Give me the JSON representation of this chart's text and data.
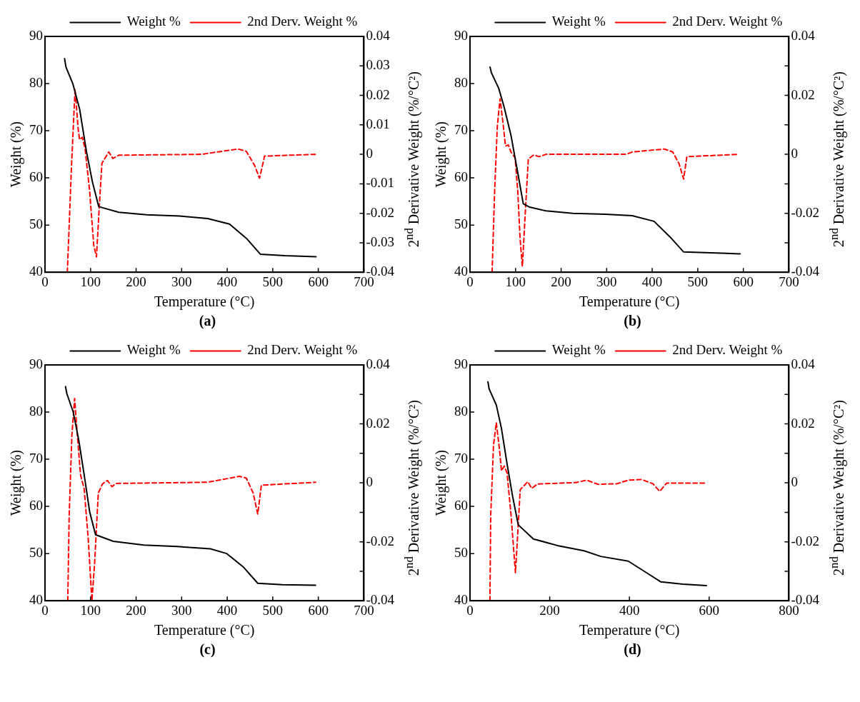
{
  "chart_data": [
    {
      "type": "line",
      "xlabel": "Temperature (°C)",
      "ylabel": "Weight (%)",
      "y2label": "2$^{nd}$ Derivative Weight (%/°C²)",
      "legend": "top",
      "annotations": [
        "(a)"
      ],
      "xlim": [
        0,
        700
      ],
      "xticks": [
        0,
        100,
        200,
        300,
        400,
        500,
        600,
        700
      ],
      "ylim": [
        40,
        90
      ],
      "yticks": [
        40,
        50,
        60,
        70,
        80,
        90
      ],
      "y2lim": [
        -0.04,
        0.04
      ],
      "y2ticks": [
        -0.04,
        -0.03,
        -0.02,
        -0.01,
        0,
        0.01,
        0.02,
        0.03,
        0.04
      ],
      "series": [
        {
          "name": "Weight %",
          "color": "#000000",
          "line_style": "solid",
          "x": [
            43,
            46,
            61,
            76,
            91,
            104,
            118,
            162,
            223,
            296,
            357,
            405,
            442,
            473,
            527,
            595
          ],
          "values": [
            85.3,
            83.5,
            80,
            74.6,
            65.6,
            59.2,
            53.9,
            52.7,
            52.2,
            51.9,
            51.4,
            50.2,
            47.2,
            43.8,
            43.5,
            43.3
          ]
        },
        {
          "name": "2nd Derv. Weight %",
          "color": "#ff0000",
          "line_style": "dashed",
          "axis": "y2",
          "x": [
            49,
            52,
            58,
            66,
            73,
            76,
            82,
            88,
            98,
            107,
            113,
            119,
            125,
            140,
            149,
            162,
            345,
            369,
            424,
            442,
            460,
            471,
            482,
            595
          ],
          "values": [
            -0.04,
            -0.0284,
            -0.0045,
            0.0221,
            0.0082,
            0.005,
            0.0058,
            0.0018,
            -0.0125,
            -0.0308,
            -0.0348,
            -0.0181,
            -0.003,
            0.0008,
            -0.0014,
            -0.0003,
            0,
            0.0006,
            0.0018,
            0.001,
            -0.0037,
            -0.0081,
            -0.0006,
            0
          ]
        }
      ]
    },
    {
      "type": "line",
      "xlabel": "Temperature (°C)",
      "ylabel": "Weight (%)",
      "y2label": "2$^{nd}$ Derivative Weight (%/°C²)",
      "legend": "top",
      "annotations": [
        "(b)"
      ],
      "xlim": [
        0,
        700
      ],
      "xticks": [
        0,
        100,
        200,
        300,
        400,
        500,
        600,
        700
      ],
      "ylim": [
        40,
        90
      ],
      "yticks": [
        40,
        50,
        60,
        70,
        80,
        90
      ],
      "y2lim": [
        -0.04,
        0.04
      ],
      "y2ticks": [
        -0.04,
        {
          "value": -0.03,
          "label": null
        },
        -0.02,
        {
          "value": -0.01,
          "label": null
        },
        0,
        {
          "value": 0.01,
          "label": null
        },
        0.02,
        {
          "value": 0.03,
          "label": null
        },
        0.04
      ],
      "series": [
        {
          "name": "Weight %",
          "color": "#000000",
          "line_style": "solid",
          "x": [
            44,
            47,
            63,
            75,
            90,
            105,
            117,
            131,
            167,
            226,
            297,
            356,
            404,
            439,
            469,
            593
          ],
          "values": [
            83.5,
            82.3,
            79,
            75,
            69,
            61,
            54.5,
            53.8,
            53,
            52.5,
            52.3,
            52,
            50.8,
            47.5,
            44.3,
            43.9
          ]
        },
        {
          "name": "2nd Derv. Weight %",
          "color": "#ff0000",
          "line_style": "dashed",
          "axis": "y2",
          "x": [
            48.5,
            54,
            60,
            66,
            72,
            78,
            84,
            90,
            99,
            105,
            110,
            115,
            121,
            128,
            140,
            152,
            167,
            344,
            356,
            427,
            445,
            459,
            469,
            476,
            590
          ],
          "values": [
            -0.04,
            -0.0128,
            0.0096,
            0.0188,
            0.0112,
            0.0028,
            0.0032,
            0.0008,
            -0.0012,
            -0.0128,
            -0.0288,
            -0.038,
            -0.0208,
            -0.0016,
            -0.0002,
            -0.0008,
            0,
            0,
            0.0008,
            0.0018,
            0.0008,
            -0.0032,
            -0.0084,
            -0.0008,
            0
          ]
        }
      ]
    },
    {
      "type": "line",
      "xlabel": "Temperature (°C)",
      "ylabel": "Weight (%)",
      "y2label": "2$^{nd}$ Derivative Weight (%/°C²)",
      "legend": "top",
      "annotations": [
        "(c)"
      ],
      "xlim": [
        0,
        700
      ],
      "xticks": [
        0,
        100,
        200,
        300,
        400,
        500,
        600,
        700
      ],
      "ylim": [
        40,
        90
      ],
      "yticks": [
        40,
        50,
        60,
        70,
        80,
        90
      ],
      "y2lim": [
        -0.04,
        0.04
      ],
      "y2ticks": [
        -0.04,
        {
          "value": -0.03,
          "label": null
        },
        -0.02,
        {
          "value": -0.01,
          "label": null
        },
        0,
        {
          "value": 0.01,
          "label": null
        },
        0.02,
        {
          "value": 0.03,
          "label": null
        },
        0.04
      ],
      "series": [
        {
          "name": "Weight %",
          "color": "#000000",
          "line_style": "solid",
          "x": [
            45,
            48,
            62,
            74,
            86,
            98,
            111,
            150,
            217,
            290,
            363,
            399,
            436,
            467,
            521,
            594
          ],
          "values": [
            85.4,
            83.9,
            80,
            74.1,
            66.7,
            58.9,
            54,
            52.6,
            51.8,
            51.5,
            51,
            50,
            47.1,
            43.7,
            43.4,
            43.3
          ]
        },
        {
          "name": "2nd Derv. Weight %",
          "color": "#ff0000",
          "line_style": "dashed",
          "axis": "y2",
          "x": [
            50,
            53,
            59,
            65,
            71,
            78,
            86,
            95,
            103,
            109,
            117,
            126,
            137,
            147,
            156,
            357,
            427,
            442,
            457,
            467,
            475,
            594
          ],
          "values": [
            -0.04,
            -0.0114,
            0.0161,
            0.0286,
            0.0161,
            0.0027,
            -0.002,
            -0.0192,
            -0.04,
            -0.0271,
            -0.0035,
            -0.0004,
            0.0008,
            -0.0013,
            -0.0002,
            0.0002,
            0.0022,
            0.0016,
            -0.0035,
            -0.0106,
            -0.0008,
            0.0002
          ]
        }
      ]
    },
    {
      "type": "line",
      "xlabel": "Temperature (°C)",
      "ylabel": "Weight (%)",
      "y2label": "2$^{nd}$ Derivative Weight (%/°C²)",
      "legend": "top",
      "annotations": [
        "(d)"
      ],
      "xlim": [
        0,
        800
      ],
      "xticks": [
        0,
        200,
        400,
        600,
        800
      ],
      "ylim": [
        40,
        90
      ],
      "yticks": [
        40,
        50,
        60,
        70,
        80,
        90
      ],
      "y2lim": [
        -0.04,
        0.04
      ],
      "y2ticks": [
        -0.04,
        {
          "value": -0.03,
          "label": null
        },
        -0.02,
        {
          "value": -0.01,
          "label": null
        },
        0,
        {
          "value": 0.01,
          "label": null
        },
        0.02,
        {
          "value": 0.03,
          "label": null
        },
        0.04
      ],
      "series": [
        {
          "name": "Weight %",
          "color": "#000000",
          "line_style": "solid",
          "x": [
            45,
            48,
            66,
            79,
            93,
            107,
            121,
            159,
            224,
            286,
            328,
            397,
            438,
            479,
            534,
            593
          ],
          "values": [
            86.4,
            84.9,
            81.5,
            76.5,
            69,
            62.1,
            56.1,
            53.1,
            51.6,
            50.6,
            49.4,
            48.4,
            46.2,
            44,
            43.5,
            43.2
          ]
        },
        {
          "name": "2nd Derv. Weight %",
          "color": "#ff0000",
          "line_style": "dashed",
          "axis": "y2",
          "x": [
            50,
            52,
            59,
            66,
            74,
            79,
            86,
            93,
            103,
            114,
            119,
            126,
            145,
            155,
            169,
            266,
            293,
            321,
            369,
            397,
            431,
            459,
            476,
            493,
            590
          ],
          "values": [
            -0.04,
            -0.011,
            0.0128,
            0.0204,
            0.0112,
            0.0041,
            0.0057,
            0.0033,
            -0.011,
            -0.0305,
            -0.0189,
            -0.0023,
            0.0004,
            -0.0019,
            -0.0004,
            0.0001,
            0.0009,
            -0.0005,
            -0.0003,
            0.0009,
            0.0011,
            -0.0003,
            -0.0029,
            -0.0001,
            -0.0001
          ]
        }
      ]
    }
  ]
}
